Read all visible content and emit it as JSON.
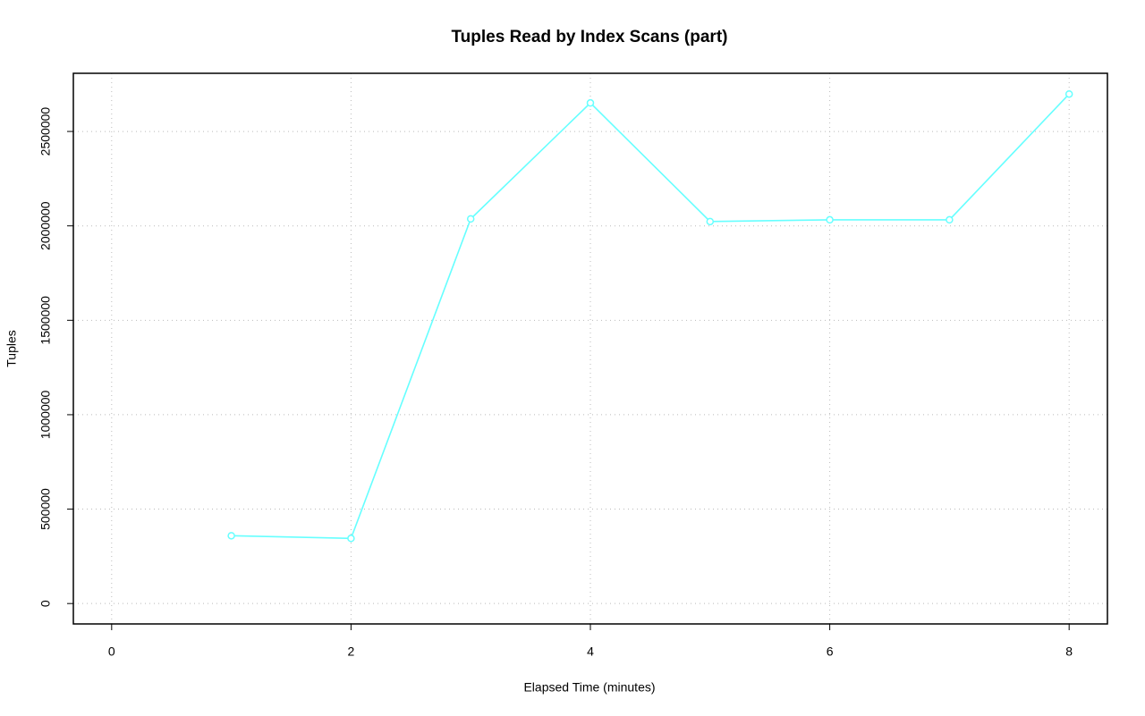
{
  "chart_data": {
    "type": "line",
    "title": "Tuples Read by Index Scans (part)",
    "xlabel": "Elapsed Time (minutes)",
    "ylabel": "Tuples",
    "x": [
      1,
      2,
      3,
      4,
      5,
      6,
      7,
      8
    ],
    "values": [
      359000,
      345000,
      2037000,
      2651000,
      2023000,
      2032000,
      2032000,
      2698000
    ],
    "color": "#66ffff",
    "markers": true,
    "xlim": [
      -0.32,
      8.32
    ],
    "xticks": [
      0,
      2,
      4,
      6,
      8
    ],
    "ylim": [
      -108000,
      2808000
    ],
    "yticks": [
      0,
      500000,
      1000000,
      1500000,
      2000000,
      2500000
    ],
    "grid": true
  }
}
